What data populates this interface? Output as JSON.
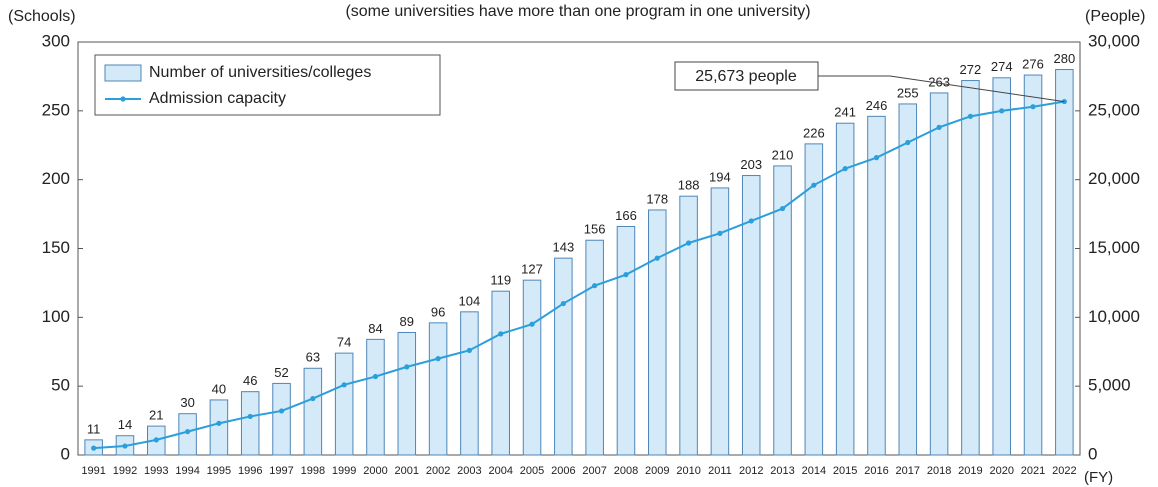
{
  "chart_data": {
    "type": "bar",
    "subtitle": "(some universities have more than one program in one university)",
    "ylabel": "(Schools)",
    "y2label": "(People)",
    "xlabel": "(FY)",
    "categories": [
      "1991",
      "1992",
      "1993",
      "1994",
      "1995",
      "1996",
      "1997",
      "1998",
      "1999",
      "2000",
      "2001",
      "2002",
      "2003",
      "2004",
      "2005",
      "2006",
      "2007",
      "2008",
      "2009",
      "2010",
      "2011",
      "2012",
      "2013",
      "2014",
      "2015",
      "2016",
      "2017",
      "2018",
      "2019",
      "2020",
      "2021",
      "2022"
    ],
    "series": [
      {
        "name": "Number of universities/colleges",
        "type": "bar",
        "color": "#d4eaf8",
        "edge_color": "#4f86b8",
        "values": [
          11,
          14,
          21,
          30,
          40,
          46,
          52,
          63,
          74,
          84,
          89,
          96,
          104,
          119,
          127,
          143,
          156,
          166,
          178,
          188,
          194,
          203,
          210,
          226,
          241,
          246,
          255,
          263,
          272,
          274,
          276,
          280
        ]
      },
      {
        "name": "Admission capacity",
        "type": "line",
        "axis": "y2",
        "color": "#2a9fdb",
        "values": [
          500,
          650,
          1100,
          1700,
          2300,
          2800,
          3200,
          4100,
          5100,
          5700,
          6400,
          7000,
          7600,
          8800,
          9500,
          11000,
          12300,
          13100,
          14300,
          15400,
          16100,
          17000,
          17900,
          19600,
          20800,
          21600,
          22700,
          23800,
          24600,
          25000,
          25300,
          25673
        ]
      }
    ],
    "annotation": "25,673 people",
    "ylim": [
      0,
      300
    ],
    "yticks": [
      0,
      50,
      100,
      150,
      200,
      250,
      300
    ],
    "y2lim": [
      0,
      30000
    ],
    "y2ticks": [
      0,
      {
        "value": 5000,
        "label": "5,000"
      },
      {
        "value": 10000,
        "label": "10,000"
      },
      {
        "value": 15000,
        "label": "15,000"
      },
      {
        "value": 20000,
        "label": "20,000"
      },
      {
        "value": 25000,
        "label": "25,000"
      },
      {
        "value": 30000,
        "label": "30,000"
      }
    ],
    "legend": "upper left"
  }
}
